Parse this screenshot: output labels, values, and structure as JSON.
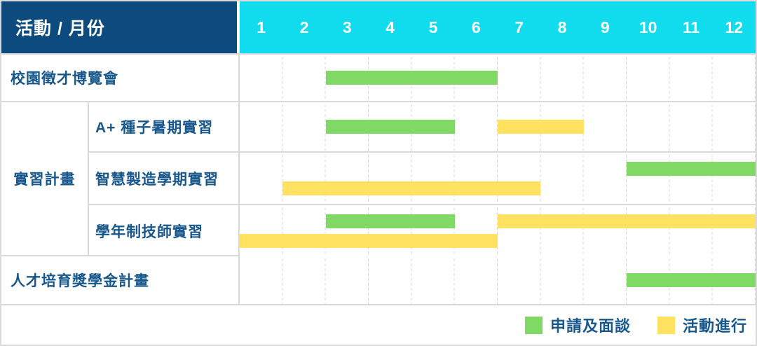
{
  "header": {
    "label": "活動 / 月份",
    "months": [
      "1",
      "2",
      "3",
      "4",
      "5",
      "6",
      "7",
      "8",
      "9",
      "10",
      "11",
      "12"
    ]
  },
  "colors": {
    "header_bg": "#0d4a7e",
    "months_bg": "#10dcee",
    "green": "#80d964",
    "yellow": "#ffe262",
    "label_text": "#17578c",
    "grid": "#d9d9d9"
  },
  "legend": {
    "items": [
      {
        "type": "green",
        "label": "申請及面談"
      },
      {
        "type": "yellow",
        "label": "活動進行"
      }
    ]
  },
  "chart_data": {
    "type": "gantt",
    "unit": "month",
    "x_range": [
      1,
      12
    ],
    "group_label": "實習計畫",
    "legend": {
      "green": "申請及面談",
      "yellow": "活動進行"
    },
    "rows": [
      {
        "id": "career-fair",
        "label": "校園徵才博覽會",
        "group": null,
        "bars": [
          {
            "type": "green",
            "start": 3,
            "end": 6,
            "lane": "single"
          }
        ]
      },
      {
        "id": "aplus-seed-summer-internship",
        "label": "A+ 種子暑期實習",
        "group": "實習計畫",
        "bars": [
          {
            "type": "green",
            "start": 3,
            "end": 5,
            "lane": "single"
          },
          {
            "type": "yellow",
            "start": 7,
            "end": 8,
            "lane": "single"
          }
        ]
      },
      {
        "id": "smart-manufacturing-semester-internship",
        "label": "智慧製造學期實習",
        "group": "實習計畫",
        "bars": [
          {
            "type": "green",
            "start": 10,
            "end": 12,
            "lane": "top"
          },
          {
            "type": "yellow",
            "start": 2,
            "end": 7,
            "lane": "bottom"
          }
        ]
      },
      {
        "id": "year-round-technician-internship",
        "label": "學年制技師實習",
        "group": "實習計畫",
        "bars": [
          {
            "type": "green",
            "start": 3,
            "end": 5,
            "lane": "top"
          },
          {
            "type": "yellow",
            "start": 7,
            "end": 12,
            "lane": "top"
          },
          {
            "type": "yellow",
            "start": 1,
            "end": 6,
            "lane": "bottom"
          }
        ]
      },
      {
        "id": "talent-scholarship-program",
        "label": "人才培育獎學金計畫",
        "group": null,
        "bars": [
          {
            "type": "green",
            "start": 10,
            "end": 12,
            "lane": "single"
          }
        ]
      }
    ]
  }
}
